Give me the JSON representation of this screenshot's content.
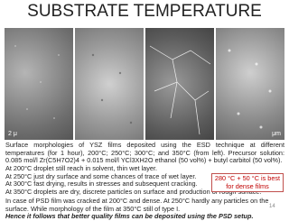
{
  "title": "SUBSTRATE TEMPERATURE",
  "images": [
    {
      "scale": "2 μ"
    },
    {
      "scale": null
    },
    {
      "scale": null
    },
    {
      "scale": "μm"
    }
  ],
  "caption": "Surface morphologies of YSZ films deposited using the ESD technique at different temperatures (for 1 hour), 200°C; 250°C; 300°C; and 350°C (from left). Precursor solution: 0.085 mol/l Zr(C5H7O2)4 + 0.015 mol/l YCl3XH2O ethanol (50 vol%) + butyl carbitol (50 vol%).",
  "observations": [
    "At 200°C droplet still reach in solvent, thin wet layer.",
    "At 250°C just dry surface and some chances of trace of wet layer.",
    "At 300°C fast drying, results in stresses and subsequent cracking.",
    "At 350°C droplets are dry, discrete particles on surface and production of rough surface."
  ],
  "callout": "280 °C + 50 °C is best for dense films",
  "psd_note": "In case of PSD film was cracked at 200°C and dense. At 250°C hardly any particles on the surface. While morphology of the film at 350°C still of type I.",
  "conclusion": "Hence it follows that better quality films can be deposited using the PSD setup.",
  "page_number": "14"
}
